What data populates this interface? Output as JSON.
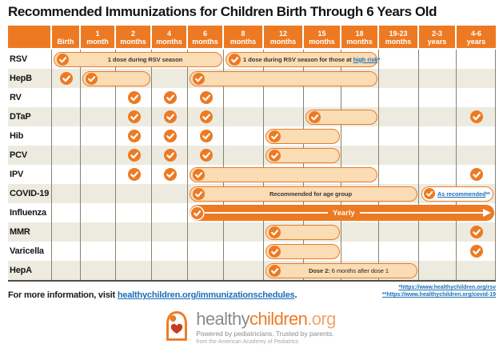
{
  "chart_data": {
    "type": "table",
    "title": "Recommended Immunizations for Children Birth Through 6 Years Old",
    "columns": [
      {
        "top": "",
        "bottom": "Birth"
      },
      {
        "top": "1",
        "bottom": "month"
      },
      {
        "top": "2",
        "bottom": "months"
      },
      {
        "top": "4",
        "bottom": "months"
      },
      {
        "top": "6",
        "bottom": "months"
      },
      {
        "top": "8",
        "bottom": "months"
      },
      {
        "top": "12",
        "bottom": "months"
      },
      {
        "top": "15",
        "bottom": "months"
      },
      {
        "top": "18",
        "bottom": "months"
      },
      {
        "top": "19-23",
        "bottom": "months"
      },
      {
        "top": "2-3",
        "bottom": "years"
      },
      {
        "top": "4-6",
        "bottom": "years"
      }
    ],
    "rows": [
      {
        "label": "RSV",
        "items": [
          {
            "type": "bar",
            "start": 0,
            "end": 4,
            "check": true,
            "text": "1 dose during RSV season"
          },
          {
            "type": "bar",
            "start": 5,
            "end": 8,
            "check": true,
            "text": "1 dose during RSV season for those at ",
            "link": "high risk",
            "suffix": "*"
          }
        ]
      },
      {
        "label": "HepB",
        "items": [
          {
            "type": "check",
            "col": 0
          },
          {
            "type": "bar",
            "start": 1,
            "end": 2,
            "check": true
          },
          {
            "type": "bar",
            "start": 4,
            "end": 8,
            "check": true
          }
        ]
      },
      {
        "label": "RV",
        "items": [
          {
            "type": "check",
            "col": 2
          },
          {
            "type": "check",
            "col": 3
          },
          {
            "type": "check",
            "col": 4
          }
        ]
      },
      {
        "label": "DTaP",
        "items": [
          {
            "type": "check",
            "col": 2
          },
          {
            "type": "check",
            "col": 3
          },
          {
            "type": "check",
            "col": 4
          },
          {
            "type": "bar",
            "start": 7,
            "end": 8,
            "check": true
          },
          {
            "type": "check",
            "col": 11
          }
        ]
      },
      {
        "label": "Hib",
        "items": [
          {
            "type": "check",
            "col": 2
          },
          {
            "type": "check",
            "col": 3
          },
          {
            "type": "check",
            "col": 4
          },
          {
            "type": "bar",
            "start": 6,
            "end": 7,
            "check": true
          }
        ]
      },
      {
        "label": "PCV",
        "items": [
          {
            "type": "check",
            "col": 2
          },
          {
            "type": "check",
            "col": 3
          },
          {
            "type": "check",
            "col": 4
          },
          {
            "type": "bar",
            "start": 6,
            "end": 7,
            "check": true
          }
        ]
      },
      {
        "label": "IPV",
        "items": [
          {
            "type": "check",
            "col": 2
          },
          {
            "type": "check",
            "col": 3
          },
          {
            "type": "bar",
            "start": 4,
            "end": 8,
            "check": true
          },
          {
            "type": "check",
            "col": 11
          }
        ]
      },
      {
        "label": "COVID-19",
        "items": [
          {
            "type": "bar",
            "start": 4,
            "end": 9,
            "check": true,
            "text": "Recommended for age group"
          },
          {
            "type": "pill",
            "start": 10,
            "end": 11,
            "check": true,
            "link": "As recommended",
            "suffix": "**"
          }
        ]
      },
      {
        "label": "Influenza",
        "items": [
          {
            "type": "arrow",
            "start": 4,
            "end": 11,
            "check": true,
            "text": "Yearly"
          }
        ]
      },
      {
        "label": "MMR",
        "items": [
          {
            "type": "bar",
            "start": 6,
            "end": 7,
            "check": true
          },
          {
            "type": "check",
            "col": 11
          }
        ]
      },
      {
        "label": "Varicella",
        "items": [
          {
            "type": "bar",
            "start": 6,
            "end": 7,
            "check": true
          },
          {
            "type": "check",
            "col": 11
          }
        ]
      },
      {
        "label": "HepA",
        "items": [
          {
            "type": "bar",
            "start": 6,
            "end": 9,
            "check": true,
            "bold_text": "Dose 2:",
            "text": " 6 months after dose 1"
          }
        ]
      }
    ]
  },
  "footnotes": {
    "rsv": "*https://www.healthychildren.org/rsv",
    "covid": "**https://www.healthychildren.org/covid-19"
  },
  "more_info": {
    "prefix": "For more information, visit ",
    "link": "healthychildren.org/immunizationschedules",
    "suffix": "."
  },
  "footer": {
    "logo_healthy": "healthy",
    "logo_children": "children",
    "logo_org": ".org",
    "tagline": "Powered by pediatricians. Trusted by parents.",
    "subtagline": "from the American Academy of Pediatrics"
  },
  "icons": {
    "check": "check-icon",
    "arrow_right": "arrow-right-icon",
    "logo": "mother-child-logo-icon"
  },
  "colors": {
    "accent_orange": "#ED7A23",
    "bar_fill": "#FADCB5",
    "row_alt": "#EDEBE0",
    "link_blue": "#1C6FB7",
    "grid_line": "#85846F"
  }
}
